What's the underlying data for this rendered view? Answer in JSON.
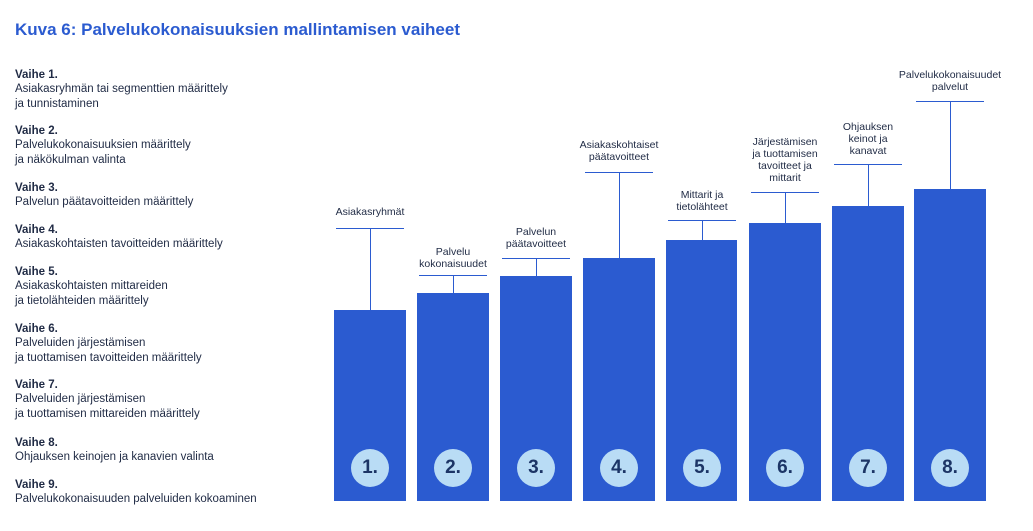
{
  "figure": {
    "title": "Kuva 6: Palvelukokonaisuuksien mallintamisen vaiheet",
    "accent_color": "#2b5bd0",
    "badge_color": "#b9dcf5"
  },
  "steps": [
    {
      "label": "Vaihe 1.",
      "text": "Asiakasryhmän tai segmenttien määrittely\nja tunnistaminen"
    },
    {
      "label": "Vaihe 2.",
      "text": "Palvelukokonaisuuksien määrittely\nja näkökulman valinta"
    },
    {
      "label": "Vaihe 3.",
      "text": "Palvelun päätavoitteiden määrittely"
    },
    {
      "label": "Vaihe 4.",
      "text": "Asiakaskohtaisten tavoitteiden määrittely"
    },
    {
      "label": "Vaihe 5.",
      "text": "Asiakaskohtaisten mittareiden\nja tietolähteiden määrittely"
    },
    {
      "label": "Vaihe 6.",
      "text": "Palveluiden järjestämisen\nja tuottamisen tavoitteiden määrittely"
    },
    {
      "label": "Vaihe 7.",
      "text": "Palveluiden järjestämisen\nja tuottamisen mittareiden määrittely"
    },
    {
      "label": "Vaihe 8.",
      "text": "Ohjauksen keinojen ja kanavien valinta"
    },
    {
      "label": "Vaihe 9.",
      "text": "Palvelukokonaisuuden palveluiden kokoaminen"
    }
  ],
  "bars": [
    {
      "number": "1.",
      "label": "Asiakasryhmät"
    },
    {
      "number": "2.",
      "label": "Palvelu\nkokonaisuudet"
    },
    {
      "number": "3.",
      "label": "Palvelun\npäätavoitteet"
    },
    {
      "number": "4.",
      "label": "Asiakaskohtaiset\npäätavoitteet"
    },
    {
      "number": "5.",
      "label": "Mittarit ja\ntietolähteet"
    },
    {
      "number": "6.",
      "label": "Järjestämisen\nja tuottamisen\ntavoitteet ja\nmittarit"
    },
    {
      "number": "7.",
      "label": "Ohjauksen\nkeinot ja\nkanavat"
    },
    {
      "number": "8.",
      "label": "Palvelukokonaisuudet\npalvelut"
    }
  ]
}
